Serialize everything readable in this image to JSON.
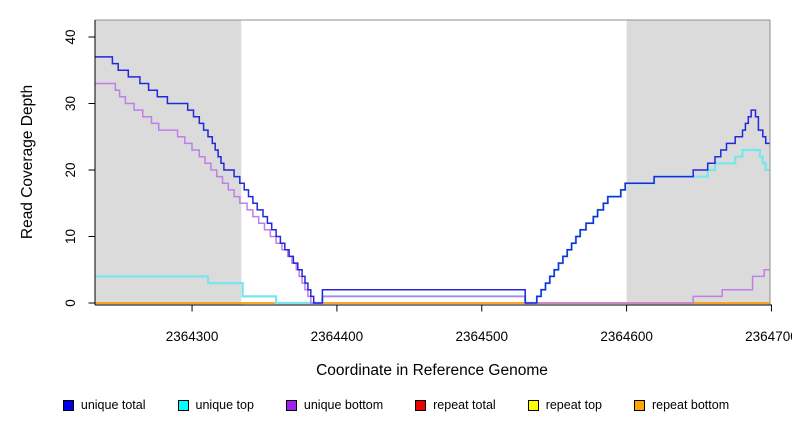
{
  "chart_data": {
    "type": "line",
    "subtype": "step",
    "title": "",
    "xlabel": "Coordinate in Reference Genome",
    "ylabel": "Read Coverage Depth",
    "x_range": [
      2364233,
      2364699
    ],
    "y_range": [
      0,
      42.5
    ],
    "grid": false,
    "legend_position": "bottom",
    "x_ticks": [
      {
        "value": 2364300,
        "label": "2364300"
      },
      {
        "value": 2364400,
        "label": "2364400"
      },
      {
        "value": 2364500,
        "label": "2364500"
      },
      {
        "value": 2364600,
        "label": "2364600"
      },
      {
        "value": 2364700,
        "label": "2364700"
      }
    ],
    "y_ticks": [
      {
        "value": 0,
        "label": "0"
      },
      {
        "value": 10,
        "label": "10"
      },
      {
        "value": 20,
        "label": "20"
      },
      {
        "value": 30,
        "label": "30"
      },
      {
        "value": 40,
        "label": "40"
      }
    ],
    "shaded_regions": [
      {
        "from": 2364233,
        "to": 2364334
      },
      {
        "from": 2364600,
        "to": 2364699
      }
    ],
    "shade_color": "#DBDBDB",
    "box_color": "#8F8F8F",
    "axis_color": "#000000",
    "draw_order": [
      4,
      3,
      5,
      1,
      2,
      0
    ],
    "series": [
      {
        "name": "unique_total",
        "label": "unique total",
        "legend_color": "#0000EE",
        "line_color": "#2328DC",
        "line_width": 1.5,
        "points": [
          [
            2364233,
            37
          ],
          [
            2364245,
            36
          ],
          [
            2364249,
            35
          ],
          [
            2364256,
            34
          ],
          [
            2364264,
            33
          ],
          [
            2364270,
            32
          ],
          [
            2364276,
            31
          ],
          [
            2364283,
            30
          ],
          [
            2364297,
            29
          ],
          [
            2364301,
            28
          ],
          [
            2364305,
            27
          ],
          [
            2364308,
            26
          ],
          [
            2364311,
            25
          ],
          [
            2364314,
            24
          ],
          [
            2364316,
            23
          ],
          [
            2364318,
            22
          ],
          [
            2364320,
            21
          ],
          [
            2364322,
            20
          ],
          [
            2364329,
            19
          ],
          [
            2364333,
            18
          ],
          [
            2364336,
            17
          ],
          [
            2364339,
            16
          ],
          [
            2364342,
            15
          ],
          [
            2364345,
            14
          ],
          [
            2364349,
            13
          ],
          [
            2364352,
            12
          ],
          [
            2364355,
            11
          ],
          [
            2364358,
            10
          ],
          [
            2364361,
            9
          ],
          [
            2364364,
            8
          ],
          [
            2364367,
            7
          ],
          [
            2364370,
            6
          ],
          [
            2364373,
            5
          ],
          [
            2364376,
            4
          ],
          [
            2364378,
            3
          ],
          [
            2364380,
            2
          ],
          [
            2364382,
            1
          ],
          [
            2364384,
            0
          ],
          [
            2364390,
            2
          ],
          [
            2364530,
            0
          ],
          [
            2364538,
            1
          ],
          [
            2364541,
            2
          ],
          [
            2364544,
            3
          ],
          [
            2364547,
            4
          ],
          [
            2364550,
            5
          ],
          [
            2364553,
            6
          ],
          [
            2364556,
            7
          ],
          [
            2364559,
            8
          ],
          [
            2364562,
            9
          ],
          [
            2364565,
            10
          ],
          [
            2364568,
            11
          ],
          [
            2364572,
            12
          ],
          [
            2364577,
            13
          ],
          [
            2364580,
            14
          ],
          [
            2364584,
            15
          ],
          [
            2364587,
            16
          ],
          [
            2364596,
            17
          ],
          [
            2364599,
            18
          ],
          [
            2364619,
            19
          ],
          [
            2364646,
            20
          ],
          [
            2364656,
            21
          ],
          [
            2364661,
            22
          ],
          [
            2364665,
            23
          ],
          [
            2364669,
            24
          ],
          [
            2364675,
            25
          ],
          [
            2364680,
            26
          ],
          [
            2364682,
            27
          ],
          [
            2364684,
            28
          ],
          [
            2364686,
            29
          ],
          [
            2364689,
            28
          ],
          [
            2364691,
            26
          ],
          [
            2364694,
            25
          ],
          [
            2364696,
            24
          ]
        ]
      },
      {
        "name": "unique_top",
        "label": "unique top",
        "legend_color": "#00FFFF",
        "line_color": "#76E7EC",
        "line_width": 2.2,
        "points": [
          [
            2364233,
            4
          ],
          [
            2364311,
            3
          ],
          [
            2364335,
            1
          ],
          [
            2364358,
            0
          ],
          [
            2364390,
            1
          ],
          [
            2364530,
            0
          ],
          [
            2364538,
            1
          ],
          [
            2364541,
            2
          ],
          [
            2364544,
            3
          ],
          [
            2364547,
            4
          ],
          [
            2364550,
            5
          ],
          [
            2364553,
            6
          ],
          [
            2364556,
            7
          ],
          [
            2364559,
            8
          ],
          [
            2364562,
            9
          ],
          [
            2364565,
            10
          ],
          [
            2364568,
            11
          ],
          [
            2364572,
            12
          ],
          [
            2364577,
            13
          ],
          [
            2364580,
            14
          ],
          [
            2364584,
            15
          ],
          [
            2364587,
            16
          ],
          [
            2364596,
            17
          ],
          [
            2364599,
            18
          ],
          [
            2364619,
            19
          ],
          [
            2364656,
            20
          ],
          [
            2364661,
            21
          ],
          [
            2364675,
            22
          ],
          [
            2364680,
            23
          ],
          [
            2364692,
            22
          ],
          [
            2364694,
            21
          ],
          [
            2364696,
            20
          ]
        ]
      },
      {
        "name": "unique_bottom",
        "label": "unique bottom",
        "legend_color": "#A020F0",
        "line_color": "#C07FE8",
        "line_width": 1.5,
        "points": [
          [
            2364233,
            33
          ],
          [
            2364247,
            32
          ],
          [
            2364250,
            31
          ],
          [
            2364254,
            30
          ],
          [
            2364260,
            29
          ],
          [
            2364266,
            28
          ],
          [
            2364272,
            27
          ],
          [
            2364277,
            26
          ],
          [
            2364290,
            25
          ],
          [
            2364295,
            24
          ],
          [
            2364300,
            23
          ],
          [
            2364305,
            22
          ],
          [
            2364309,
            21
          ],
          [
            2364313,
            20
          ],
          [
            2364317,
            19
          ],
          [
            2364321,
            18
          ],
          [
            2364325,
            17
          ],
          [
            2364329,
            16
          ],
          [
            2364333,
            15
          ],
          [
            2364338,
            14
          ],
          [
            2364342,
            13
          ],
          [
            2364346,
            12
          ],
          [
            2364350,
            11
          ],
          [
            2364354,
            10
          ],
          [
            2364358,
            9
          ],
          [
            2364362,
            8
          ],
          [
            2364366,
            7
          ],
          [
            2364369,
            6
          ],
          [
            2364372,
            5
          ],
          [
            2364374,
            4
          ],
          [
            2364376,
            3
          ],
          [
            2364378,
            2
          ],
          [
            2364380,
            1
          ],
          [
            2364382,
            0
          ],
          [
            2364390,
            1
          ],
          [
            2364530,
            0
          ],
          [
            2364646,
            1
          ],
          [
            2364666,
            2
          ],
          [
            2364687,
            4
          ],
          [
            2364695,
            5
          ]
        ]
      },
      {
        "name": "repeat_total",
        "label": "repeat total",
        "legend_color": "#EE0000",
        "line_color": "#DD0000",
        "line_width": 1.2,
        "points": [
          [
            2364233,
            0
          ]
        ]
      },
      {
        "name": "repeat_top",
        "label": "repeat top",
        "legend_color": "#FFFF00",
        "line_color": "#FFEB00",
        "line_width": 1.2,
        "points": [
          [
            2364233,
            0
          ]
        ]
      },
      {
        "name": "repeat_bottom",
        "label": "repeat bottom",
        "legend_color": "#FFA500",
        "line_color": "#FFA008",
        "line_width": 1.5,
        "points": [
          [
            2364233,
            0
          ]
        ]
      }
    ]
  }
}
